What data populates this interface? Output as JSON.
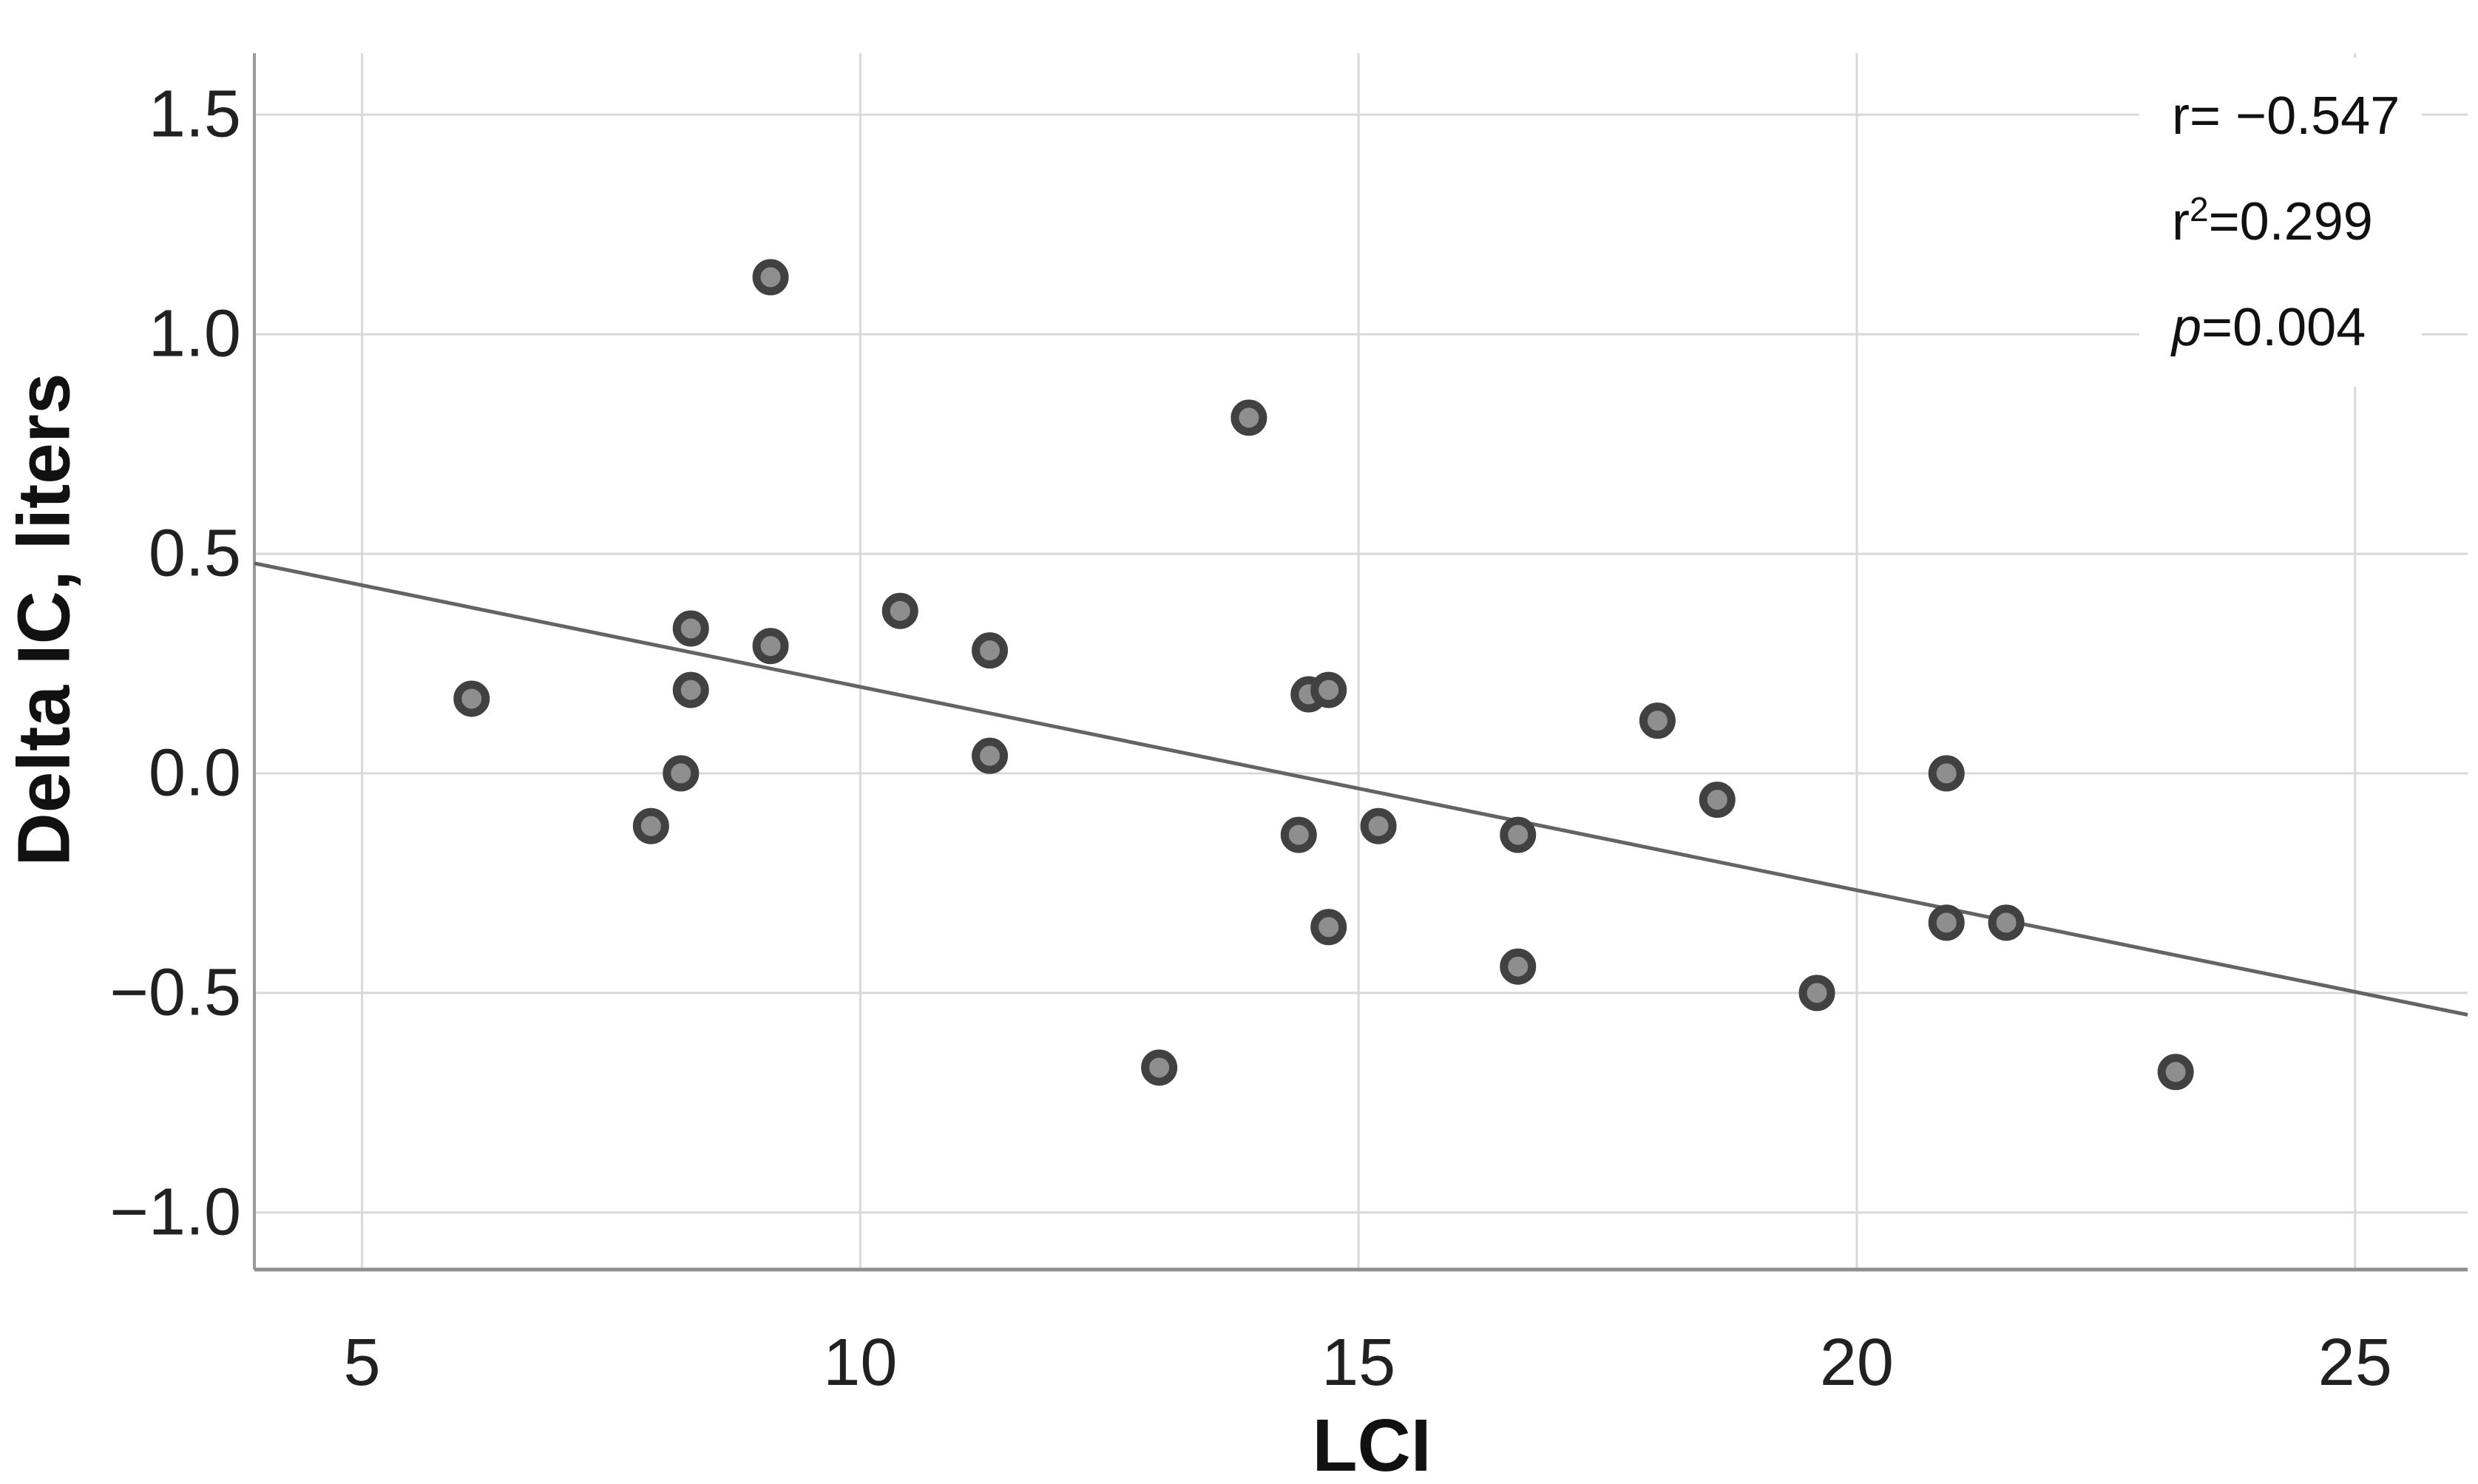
{
  "figure": {
    "xlabel": "LCI",
    "ylabel": "Delta IC, liters"
  },
  "stats": {
    "r_line": "r= −0.547",
    "r2_base": "r",
    "r2_sup": "2",
    "r2_rest": "=0.299",
    "p_label": "p",
    "p_rest": "=0.004"
  },
  "chart_data": {
    "type": "scatter",
    "title": "",
    "xlabel": "LCI",
    "ylabel": "Delta IC, liters",
    "xlim": [
      3.92,
      26.13
    ],
    "ylim": [
      -1.13,
      1.64
    ],
    "grid": true,
    "legend_position": "none",
    "annotation_lines": [
      "r= −0.547",
      "r²=0.299",
      "p=0.004"
    ],
    "xticks": [
      {
        "value": 5,
        "label": "5"
      },
      {
        "value": 10,
        "label": "10"
      },
      {
        "value": 15,
        "label": "15"
      },
      {
        "value": 20,
        "label": "20"
      },
      {
        "value": 25,
        "label": "25"
      }
    ],
    "yticks": [
      {
        "value": 1.5,
        "label": "1.5"
      },
      {
        "value": 1.0,
        "label": "1.0"
      },
      {
        "value": 0.5,
        "label": "0.5"
      },
      {
        "value": 0.0,
        "label": "0.0"
      },
      {
        "value": -0.5,
        "label": "−0.5"
      },
      {
        "value": -1.0,
        "label": "−1.0"
      }
    ],
    "points": [
      {
        "x": 6.1,
        "y": 0.17
      },
      {
        "x": 7.9,
        "y": -0.12
      },
      {
        "x": 8.2,
        "y": 0.0
      },
      {
        "x": 8.3,
        "y": 0.33
      },
      {
        "x": 8.3,
        "y": 0.19
      },
      {
        "x": 9.1,
        "y": 0.29
      },
      {
        "x": 9.1,
        "y": 1.13
      },
      {
        "x": 10.4,
        "y": 0.37
      },
      {
        "x": 11.3,
        "y": 0.28
      },
      {
        "x": 11.3,
        "y": 0.04
      },
      {
        "x": 13.0,
        "y": -0.67
      },
      {
        "x": 13.9,
        "y": 0.81
      },
      {
        "x": 14.4,
        "y": -0.14
      },
      {
        "x": 14.5,
        "y": 0.18
      },
      {
        "x": 14.7,
        "y": 0.19
      },
      {
        "x": 14.7,
        "y": -0.35
      },
      {
        "x": 15.2,
        "y": -0.12
      },
      {
        "x": 16.6,
        "y": -0.14
      },
      {
        "x": 16.6,
        "y": -0.44
      },
      {
        "x": 18.0,
        "y": 0.12
      },
      {
        "x": 18.6,
        "y": -0.06
      },
      {
        "x": 19.6,
        "y": -0.5
      },
      {
        "x": 20.9,
        "y": 0.0
      },
      {
        "x": 20.9,
        "y": -0.34
      },
      {
        "x": 21.5,
        "y": -0.34
      },
      {
        "x": 23.2,
        "y": -0.68
      }
    ],
    "regression_line": {
      "slope": -0.0463,
      "intercept": 0.66,
      "x_start": 3.92,
      "x_end": 26.13
    },
    "colors": {
      "background": "#ffffff",
      "gridline": "#d9d9d9",
      "axis": "#999999",
      "regression": "#646464",
      "point_fill": "#8e8e8e",
      "point_stroke": "#414141",
      "text": "#212121"
    }
  }
}
